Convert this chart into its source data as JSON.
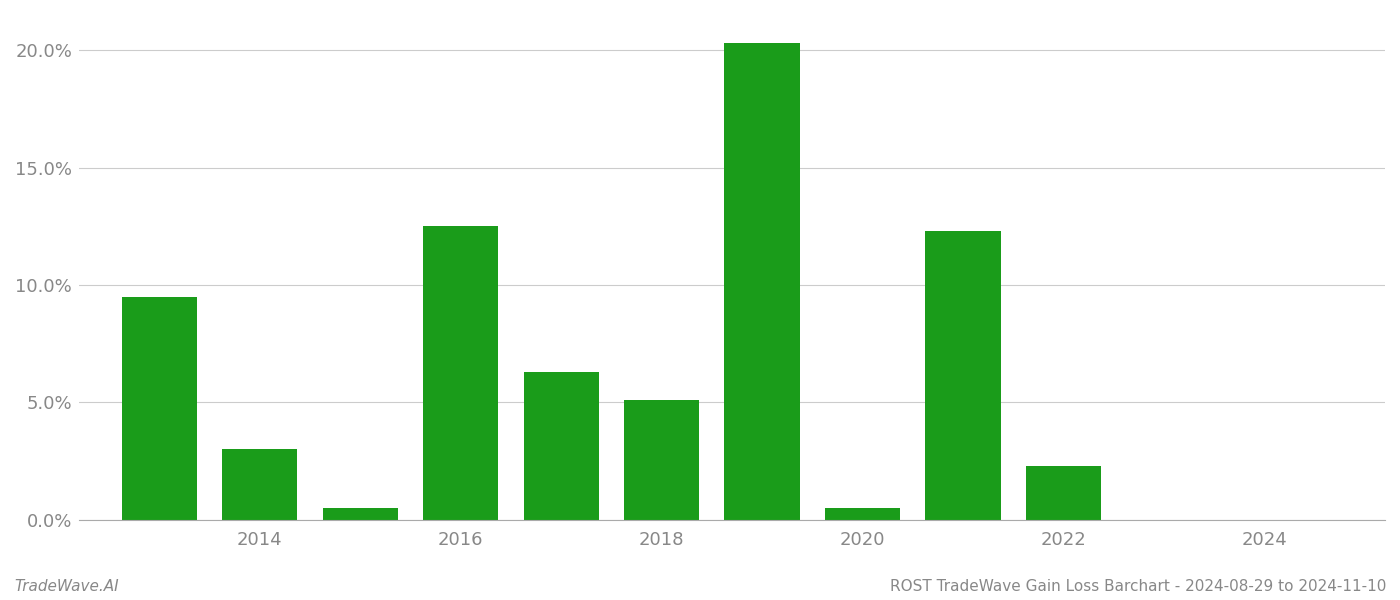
{
  "years": [
    2013,
    2014,
    2015,
    2016,
    2017,
    2018,
    2019,
    2020,
    2021,
    2022,
    2023,
    2024
  ],
  "values": [
    0.095,
    0.03,
    0.005,
    0.125,
    0.063,
    0.051,
    0.203,
    0.005,
    0.123,
    0.023,
    0.0,
    0.0
  ],
  "bar_color": "#1a9c1a",
  "background_color": "#ffffff",
  "grid_color": "#cccccc",
  "axis_color": "#aaaaaa",
  "tick_color": "#888888",
  "bottom_left_text": "TradeWave.AI",
  "bottom_right_text": "ROST TradeWave Gain Loss Barchart - 2024-08-29 to 2024-11-10",
  "ylim_min": 0.0,
  "ylim_max": 0.215,
  "yticks": [
    0.0,
    0.05,
    0.1,
    0.15,
    0.2
  ],
  "ytick_labels": [
    "0.0%",
    "5.0%",
    "10.0%",
    "15.0%",
    "20.0%"
  ],
  "xtick_positions": [
    2014,
    2016,
    2018,
    2020,
    2022,
    2024
  ],
  "xlim_min": 2012.2,
  "xlim_max": 2025.2,
  "bar_width": 0.75
}
